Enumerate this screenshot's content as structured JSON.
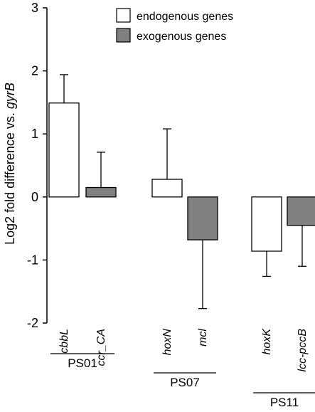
{
  "chart_data": {
    "type": "bar",
    "ylabel_prefix": "Log2 fold difference vs. ",
    "ylabel_italic": "gyrB",
    "ylim": [
      -2,
      3
    ],
    "yticks": [
      3,
      2,
      1,
      0,
      -1,
      -2
    ],
    "legend_placement": "top-right",
    "series": [
      {
        "name": "endogenous genes",
        "color": "#ffffff"
      },
      {
        "name": "exogenous genes",
        "color": "#808080"
      }
    ],
    "bars": [
      {
        "category": "cbbL",
        "series": 0,
        "value": 1.49,
        "error": 0.45
      },
      {
        "category": "ccr_CA",
        "series": 1,
        "value": 0.15,
        "error": 0.56
      },
      {
        "category": "hoxN",
        "series": 0,
        "value": 0.28,
        "error": 0.8
      },
      {
        "category": "mcl",
        "series": 1,
        "value": -0.68,
        "error": 1.09
      },
      {
        "category": "hoxK",
        "series": 0,
        "value": -0.86,
        "error": 0.4
      },
      {
        "category": "lcc-pccB",
        "series": 1,
        "value": -0.45,
        "error": 0.65
      }
    ],
    "groups": [
      {
        "label": "PS01",
        "bars": [
          0,
          1
        ]
      },
      {
        "label": "PS07",
        "bars": [
          2,
          3
        ]
      },
      {
        "label": "PS11",
        "bars": [
          4,
          5
        ]
      }
    ]
  }
}
